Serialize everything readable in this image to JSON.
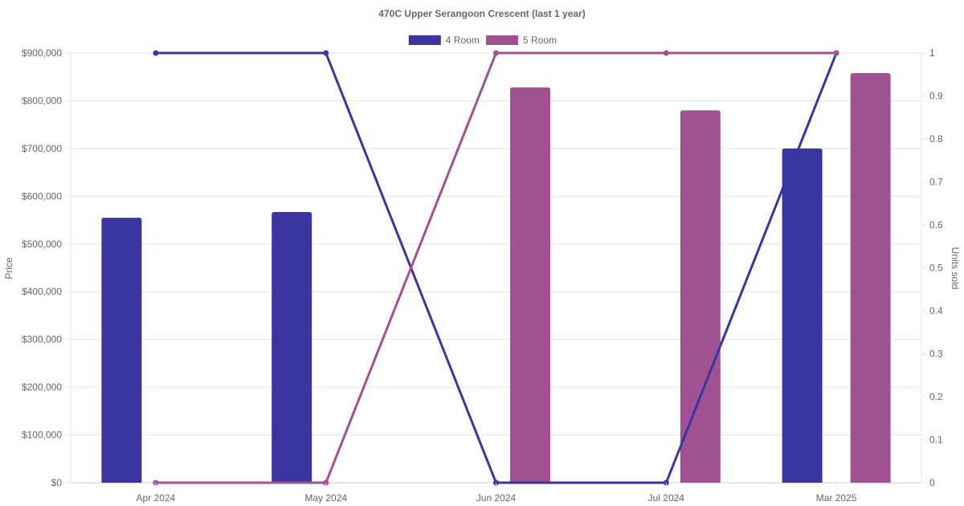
{
  "chart_data": {
    "type": "bar",
    "title": "470C Upper Serangoon Crescent (last 1 year)",
    "categories": [
      "Apr 2024",
      "May 2024",
      "Jun 2024",
      "Jul 2024",
      "Mar 2025"
    ],
    "ylabel": "Price",
    "y2label": "Units sold",
    "ylim": [
      0,
      900000
    ],
    "y2lim": [
      0,
      1
    ],
    "yticks": [
      "$0",
      "$100,000",
      "$200,000",
      "$300,000",
      "$400,000",
      "$500,000",
      "$600,000",
      "$700,000",
      "$800,000",
      "$900,000"
    ],
    "y2ticks": [
      "0",
      "0.1",
      "0.2",
      "0.3",
      "0.4",
      "0.5",
      "0.6",
      "0.7",
      "0.8",
      "0.9",
      "1"
    ],
    "grid": true,
    "legend_position": "top",
    "series": [
      {
        "name": "4 Room",
        "color": "#3a35a0",
        "price": [
          555000,
          567000,
          null,
          null,
          700000
        ],
        "units_sold": [
          1,
          1,
          0,
          0,
          1
        ]
      },
      {
        "name": "5 Room",
        "color": "#a05294",
        "price": [
          null,
          null,
          828000,
          780000,
          858000
        ],
        "units_sold": [
          0,
          0,
          1,
          1,
          1
        ]
      }
    ]
  }
}
